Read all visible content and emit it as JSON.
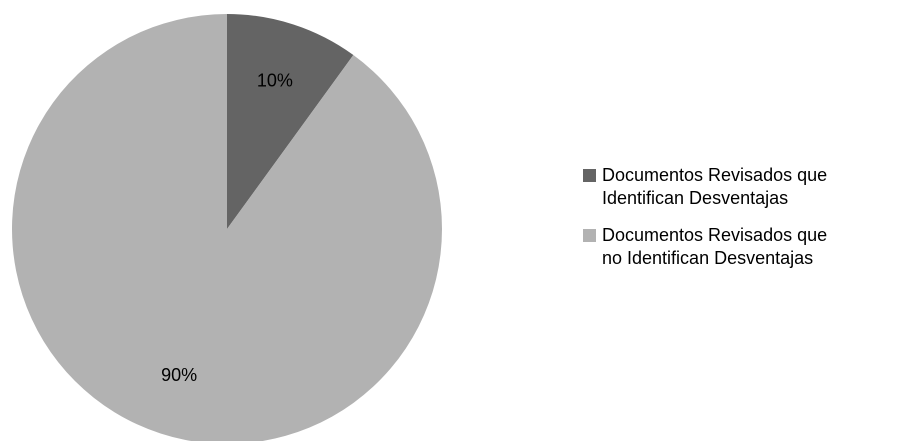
{
  "chart_data": {
    "type": "pie",
    "title": "",
    "legend_position": "right",
    "start_angle_deg": 0,
    "direction": "clockwise",
    "slices": [
      {
        "label": "Documentos Revisados que\nIdentifican  Desventajas",
        "value": 10,
        "data_label": "10%",
        "color": "#646464"
      },
      {
        "label": "Documentos Revisados que\nno Identifican  Desventajas",
        "value": 90,
        "data_label": "90%",
        "color": "#b2b2b2"
      }
    ]
  }
}
